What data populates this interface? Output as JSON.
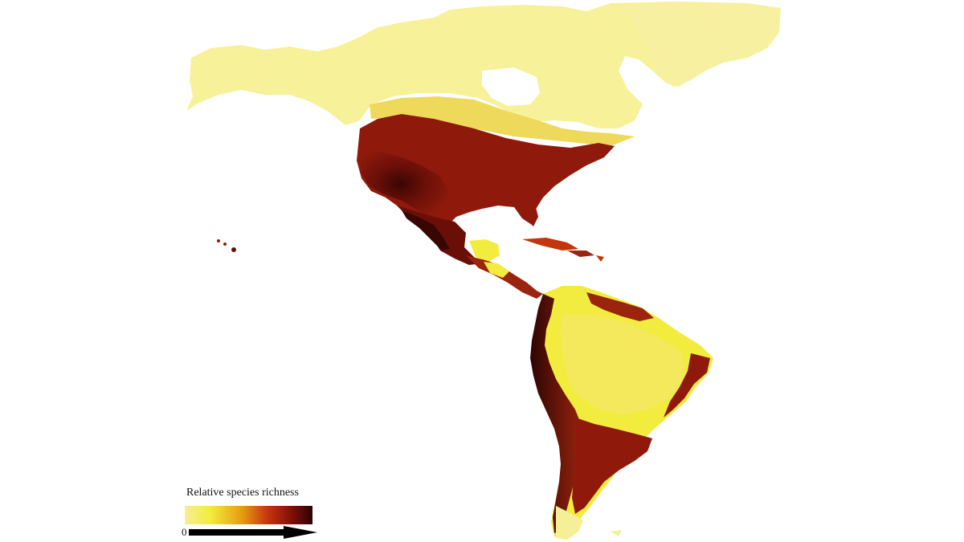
{
  "legend": {
    "title": "Relative species richness",
    "min_label": "0",
    "gradient_colors": [
      "#f5ef98",
      "#f2ec3e",
      "#e89a14",
      "#c2360c",
      "#7c0d08",
      "#2a0404"
    ]
  },
  "colors": {
    "background": "#ffffff",
    "low_richness": "#f5f08c",
    "low_mid_richness": "#f0e94a",
    "mid_richness": "#ec9a1a",
    "high_richness": "#8f1a0c",
    "highest_richness": "#3a0604"
  }
}
